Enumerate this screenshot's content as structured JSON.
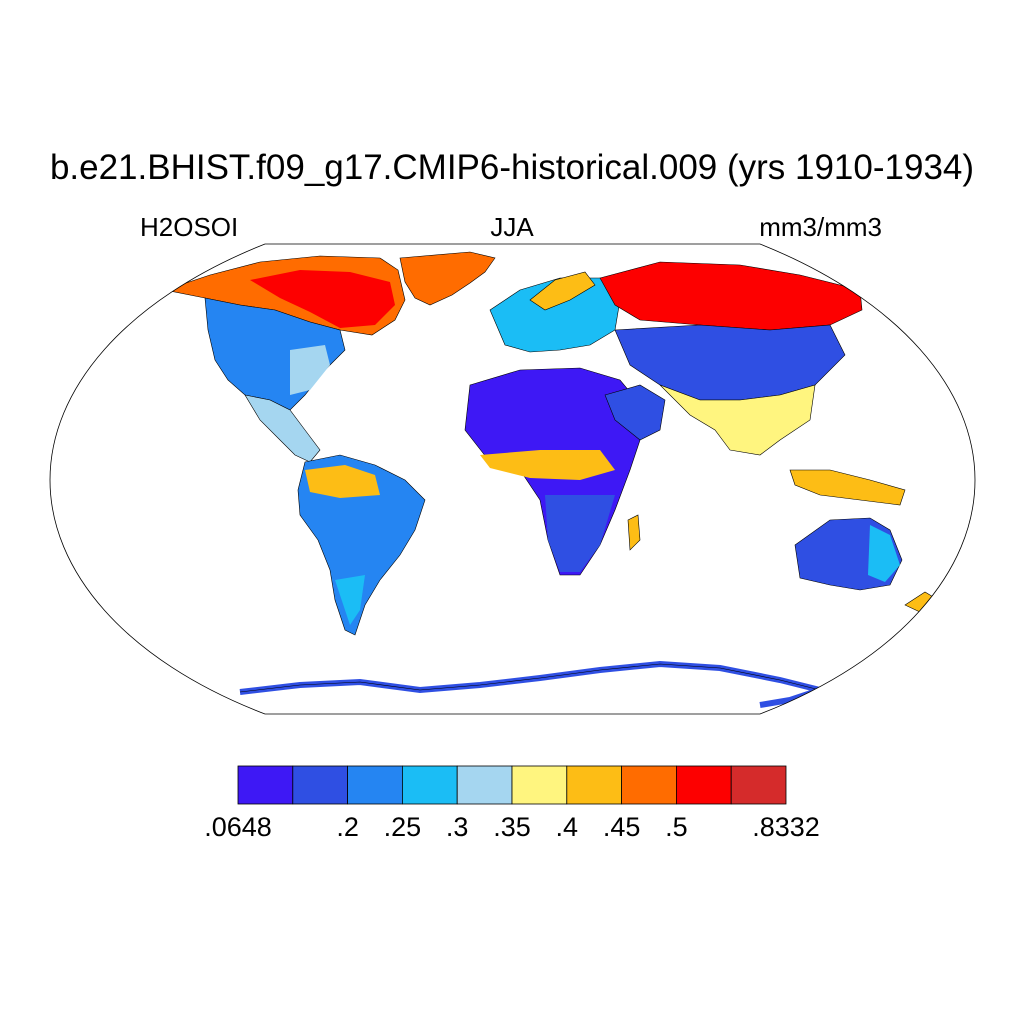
{
  "header": {
    "title": "b.e21.BHIST.f09_g17.CMIP6-historical.009 (yrs 1910-1934)",
    "variable": "H2OSOI",
    "season": "JJA",
    "units": "mm3/mm3"
  },
  "colorbar": {
    "colors": [
      "#3e18f5",
      "#2f4fe3",
      "#2585f2",
      "#1bbdf5",
      "#a5d6f0",
      "#fff57f",
      "#fdbd15",
      "#ff6c00",
      "#fd0000",
      "#d52b2b"
    ],
    "labels": [
      ".0648",
      ".2",
      ".25",
      ".3",
      ".35",
      ".4",
      ".45",
      ".5",
      ".8332"
    ]
  }
}
